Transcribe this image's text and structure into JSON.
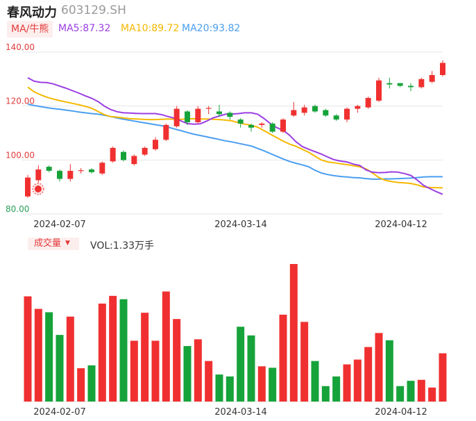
{
  "header": {
    "stock_name": "春风动力",
    "stock_code": "603129.SH",
    "ma_label": "MA/牛熊",
    "ma5_label": "MA5:87.32",
    "ma10_label": "MA10:89.72",
    "ma20_label": "MA20:93.82"
  },
  "volume_header": {
    "label": "成交量",
    "vol_text": "VOL:1.33万手"
  },
  "colors": {
    "up": "#f03030",
    "down": "#16a33a",
    "ma5": "#9b3ee3",
    "ma10": "#f5b800",
    "ma20": "#4a9ef0",
    "grid": "#e6e6e6",
    "axis_label_price": "#e33b3b",
    "axis_label_low": "#2a9d5a"
  },
  "chart_data": [
    {
      "type": "candlestick",
      "title": "",
      "y_ticks": [
        "140.00",
        "120.00",
        "100.00",
        "80.00"
      ],
      "ylim": [
        80,
        140
      ],
      "x_tick_labels": [
        "2024-02-07",
        "2024-03-14",
        "2024-04-12"
      ],
      "candles": [
        {
          "o": 86.5,
          "c": 93.5,
          "h": 94.5,
          "l": 86.0
        },
        {
          "o": 92.5,
          "c": 96.5,
          "h": 98.0,
          "l": 91.5
        },
        {
          "o": 97.5,
          "c": 96.0,
          "h": 98.0,
          "l": 95.5
        },
        {
          "o": 96.0,
          "c": 93.0,
          "h": 96.5,
          "l": 92.0
        },
        {
          "o": 93.0,
          "c": 96.0,
          "h": 98.5,
          "l": 92.0
        },
        {
          "o": 95.9,
          "c": 96.2,
          "h": 97.0,
          "l": 95.0
        },
        {
          "o": 96.5,
          "c": 95.5,
          "h": 97.0,
          "l": 95.0
        },
        {
          "o": 95.0,
          "c": 99.0,
          "h": 99.5,
          "l": 94.5
        },
        {
          "o": 99.5,
          "c": 104.5,
          "h": 105.0,
          "l": 99.0
        },
        {
          "o": 103.0,
          "c": 100.0,
          "h": 103.5,
          "l": 99.5
        },
        {
          "o": 98.5,
          "c": 101.5,
          "h": 102.0,
          "l": 98.0
        },
        {
          "o": 102.0,
          "c": 104.5,
          "h": 105.0,
          "l": 101.5
        },
        {
          "o": 104.0,
          "c": 107.5,
          "h": 108.5,
          "l": 103.5
        },
        {
          "o": 107.5,
          "c": 113.0,
          "h": 113.5,
          "l": 107.0
        },
        {
          "o": 112.5,
          "c": 119.0,
          "h": 120.0,
          "l": 112.0
        },
        {
          "o": 118.0,
          "c": 114.0,
          "h": 118.5,
          "l": 113.0
        },
        {
          "o": 114.0,
          "c": 119.0,
          "h": 120.0,
          "l": 113.5
        },
        {
          "o": 119.0,
          "c": 119.3,
          "h": 120.0,
          "l": 117.0
        },
        {
          "o": 118.0,
          "c": 117.0,
          "h": 120.5,
          "l": 116.0
        },
        {
          "o": 117.5,
          "c": 116.0,
          "h": 118.0,
          "l": 115.0
        },
        {
          "o": 115.0,
          "c": 113.5,
          "h": 115.5,
          "l": 112.0
        },
        {
          "o": 113.0,
          "c": 112.0,
          "h": 113.5,
          "l": 110.5
        },
        {
          "o": 113.0,
          "c": 113.5,
          "h": 114.0,
          "l": 112.0
        },
        {
          "o": 113.5,
          "c": 110.5,
          "h": 114.0,
          "l": 110.0
        },
        {
          "o": 110.5,
          "c": 115.0,
          "h": 115.5,
          "l": 110.0
        },
        {
          "o": 116.5,
          "c": 118.5,
          "h": 121.5,
          "l": 116.0
        },
        {
          "o": 117.5,
          "c": 119.5,
          "h": 120.5,
          "l": 116.5
        },
        {
          "o": 120.0,
          "c": 118.0,
          "h": 120.5,
          "l": 117.5
        },
        {
          "o": 118.5,
          "c": 116.5,
          "h": 119.0,
          "l": 116.0
        },
        {
          "o": 116.5,
          "c": 115.0,
          "h": 117.0,
          "l": 114.5
        },
        {
          "o": 115.0,
          "c": 119.0,
          "h": 119.5,
          "l": 114.0
        },
        {
          "o": 119.0,
          "c": 120.0,
          "h": 120.5,
          "l": 117.5
        },
        {
          "o": 119.5,
          "c": 123.0,
          "h": 123.5,
          "l": 119.0
        },
        {
          "o": 122.0,
          "c": 129.5,
          "h": 130.5,
          "l": 121.5
        },
        {
          "o": 128.5,
          "c": 128.0,
          "h": 130.5,
          "l": 126.5
        },
        {
          "o": 128.5,
          "c": 127.5,
          "h": 128.5,
          "l": 127.0
        },
        {
          "o": 127.5,
          "c": 127.0,
          "h": 128.5,
          "l": 125.5
        },
        {
          "o": 127.0,
          "c": 130.0,
          "h": 130.5,
          "l": 126.5
        },
        {
          "o": 129.0,
          "c": 131.5,
          "h": 133.0,
          "l": 128.5
        },
        {
          "o": 131.5,
          "c": 136.0,
          "h": 137.0,
          "l": 131.0
        }
      ],
      "ma5": [
        130.5,
        129.2,
        128.8,
        128.7,
        128.2,
        127.4,
        126.6,
        125.7,
        124.8,
        123.8,
        122.9,
        121.7,
        120.0,
        118.7,
        117.9,
        117.5,
        117.4,
        117.3,
        117.2,
        117.2,
        117.2,
        116.8,
        116.1,
        115.5,
        114.5,
        113.5,
        113.3,
        113.4,
        114.4,
        115.6,
        116.3,
        117.0,
        117.0,
        117.2,
        117.5,
        117.5,
        117.0,
        115.4,
        113.5,
        112.0,
        111.0,
        109.2,
        106.8,
        105.0,
        104.0,
        103.1,
        102.2,
        101.1,
        100.1,
        99.6,
        99.3,
        98.5,
        98.0,
        96.3,
        95.5,
        95.3,
        95.4,
        95.6,
        95.5,
        95.0,
        94.3,
        92.6,
        90.6,
        89.4,
        88.3,
        87.3
      ],
      "ma10": [
        127.0,
        125.3,
        124.2,
        123.3,
        122.6,
        122.0,
        121.5,
        121.0,
        120.5,
        119.9,
        119.2,
        118.0,
        116.8,
        116.1,
        115.9,
        115.6,
        115.3,
        115.2,
        115.1,
        115.0,
        115.0,
        115.1,
        115.2,
        115.1,
        115.1,
        115.2,
        115.3,
        115.2,
        115.2,
        115.1,
        115.0,
        114.8,
        114.5,
        113.8,
        113.3,
        112.9,
        112.2,
        110.9,
        109.6,
        108.3,
        107.0,
        105.9,
        105.1,
        104.0,
        102.9,
        101.4,
        100.0,
        99.3,
        99.0,
        98.6,
        98.3,
        97.9,
        97.5,
        96.7,
        95.2,
        93.5,
        92.5,
        92.0,
        91.7,
        91.5,
        91.3,
        90.8,
        90.0,
        89.8,
        89.7,
        89.7
      ],
      "ma20": [
        120.7,
        120.2,
        119.8,
        119.4,
        119.1,
        118.8,
        118.5,
        118.2,
        117.8,
        117.5,
        117.2,
        117.0,
        116.6,
        116.1,
        115.6,
        115.1,
        114.7,
        114.3,
        113.9,
        113.5,
        113.1,
        112.7,
        112.2,
        111.5,
        110.9,
        110.2,
        109.6,
        109.1,
        108.6,
        108.1,
        107.6,
        107.1,
        106.7,
        106.2,
        105.7,
        105.2,
        104.3,
        103.4,
        102.4,
        101.4,
        100.4,
        99.5,
        98.8,
        98.2,
        97.5,
        96.2,
        95.2,
        94.6,
        94.2,
        93.9,
        93.7,
        93.5,
        93.4,
        93.1,
        92.9,
        92.9,
        93.0,
        93.0,
        93.1,
        93.2,
        93.3,
        93.5,
        93.7,
        93.8,
        93.8,
        93.8
      ]
    },
    {
      "type": "bar",
      "title": "",
      "x_tick_labels": [
        "2024-02-07",
        "2024-03-14",
        "2024-04-12"
      ],
      "values": [
        2.18,
        1.92,
        1.85,
        1.38,
        1.76,
        0.69,
        0.75,
        2.03,
        2.19,
        2.12,
        1.26,
        1.84,
        1.26,
        2.28,
        1.71,
        1.15,
        1.29,
        0.84,
        0.56,
        0.52,
        1.55,
        1.37,
        0.73,
        0.7,
        1.8,
        2.85,
        1.65,
        0.84,
        0.32,
        0.52,
        0.77,
        0.87,
        1.13,
        1.42,
        1.27,
        0.32,
        0.43,
        0.45,
        0.29,
        1.0
      ],
      "up": [
        true,
        true,
        false,
        false,
        true,
        true,
        false,
        true,
        true,
        false,
        true,
        true,
        true,
        true,
        true,
        false,
        true,
        true,
        false,
        false,
        false,
        false,
        true,
        false,
        true,
        true,
        true,
        false,
        false,
        false,
        true,
        true,
        true,
        true,
        false,
        false,
        false,
        true,
        true,
        true
      ]
    }
  ]
}
